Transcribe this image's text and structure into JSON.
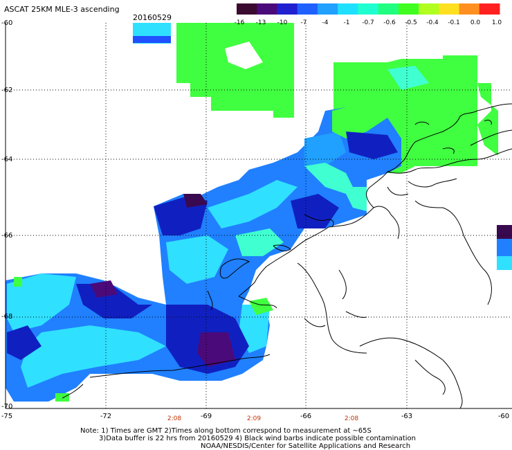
{
  "header": {
    "title": "ASCAT 25KM MLE-3 ascending",
    "date": "20160529"
  },
  "colorbar": {
    "labels": [
      "-16",
      "-13",
      "-10",
      "-7",
      "-4",
      "-1",
      "-0.7",
      "-0.6",
      "-0.5",
      "-0.4",
      "-0.1",
      "0.0",
      "1.0"
    ],
    "colors": [
      "#3a0a30",
      "#4b0a7a",
      "#2020d0",
      "#2060ff",
      "#20a0ff",
      "#20e0ff",
      "#20ffd0",
      "#20ff80",
      "#40ff20",
      "#b0ff20",
      "#ffe020",
      "#ff9020",
      "#ff2020"
    ]
  },
  "map": {
    "lat_labels": [
      "-60",
      "-62",
      "-64",
      "-66",
      "-68",
      "-70"
    ],
    "lon_labels": [
      "-75",
      "-72",
      "-69",
      "-66",
      "-63",
      "-60"
    ],
    "time_labels": [
      "2:08",
      "2:09",
      "2:08"
    ],
    "grid": true,
    "colors": {
      "deep_purple": "#3a0a50",
      "navy": "#1020c0",
      "blue": "#2050ff",
      "light_blue": "#20a0ff",
      "cyan": "#30e0ff",
      "aqua": "#40ffd0",
      "green": "#40ff40",
      "light_green": "#80ff30",
      "coast": "#000000"
    }
  },
  "footer": {
    "note1": "Note: 1) Times are GMT 2)Times along bottom correspond to measurement at ~65S",
    "note2": "3)Data buffer is 22 hrs from 20160529 4) Black wind barbs indicate possible contamination",
    "credit": "NOAA/NESDIS/Center for Satellite Applications and Research"
  }
}
